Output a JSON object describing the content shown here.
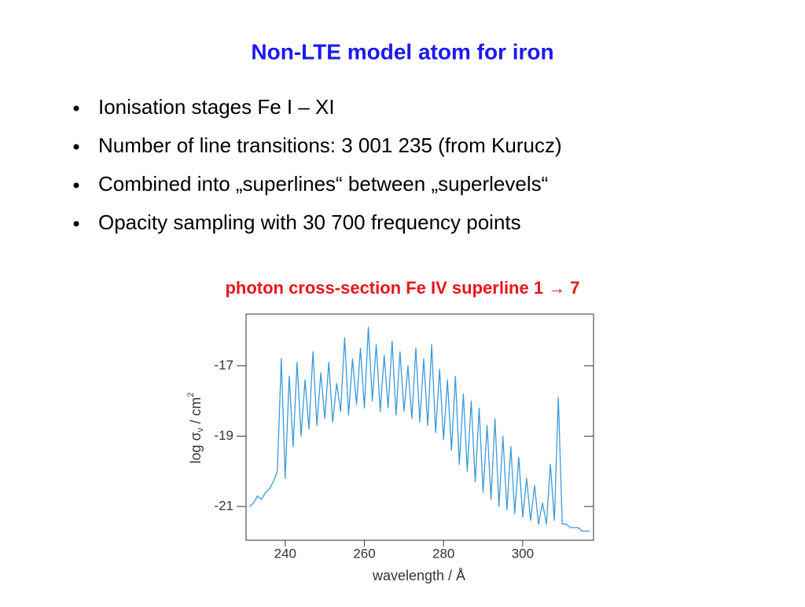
{
  "title": "Non-LTE model atom for iron",
  "bullets": [
    "Ionisation stages Fe I – XI",
    "Number of line transitions: 3 001 235 (from Kurucz)",
    "Combined into „superlines“ between „superlevels“",
    "Opacity sampling with 30 700 frequency points"
  ],
  "chart_data": {
    "type": "line",
    "title": "photon cross-section Fe IV superline 1 → 7",
    "x_label": "wavelength / Å",
    "y_label_parts": [
      "log σ",
      "ν",
      " / cm",
      "2"
    ],
    "x": [
      231,
      232,
      233,
      234,
      235,
      236,
      237,
      238,
      239,
      240,
      241,
      242,
      243,
      244,
      245,
      246,
      247,
      248,
      249,
      250,
      251,
      252,
      253,
      254,
      255,
      256,
      257,
      258,
      259,
      260,
      261,
      262,
      263,
      264,
      265,
      266,
      267,
      268,
      269,
      270,
      271,
      272,
      273,
      274,
      275,
      276,
      277,
      278,
      279,
      280,
      281,
      282,
      283,
      284,
      285,
      286,
      287,
      288,
      289,
      290,
      291,
      292,
      293,
      294,
      295,
      296,
      297,
      298,
      299,
      300,
      301,
      302,
      303,
      304,
      305,
      306,
      307,
      308,
      309,
      310,
      311,
      312,
      313,
      314,
      315,
      316,
      317
    ],
    "series": [
      {
        "color": "#3a9ad9",
        "values": [
          -21.0,
          -20.9,
          -20.7,
          -20.8,
          -20.6,
          -20.5,
          -20.3,
          -20.0,
          -16.8,
          -20.2,
          -17.3,
          -19.3,
          -16.9,
          -19.0,
          -17.4,
          -18.8,
          -16.6,
          -18.7,
          -17.2,
          -18.5,
          -16.9,
          -18.6,
          -17.5,
          -18.3,
          -16.2,
          -18.4,
          -16.8,
          -18.1,
          -16.5,
          -18.2,
          -15.9,
          -18.0,
          -16.4,
          -18.3,
          -16.7,
          -18.2,
          -16.3,
          -18.4,
          -16.6,
          -18.3,
          -17.0,
          -18.5,
          -16.5,
          -18.6,
          -16.8,
          -18.7,
          -16.4,
          -18.9,
          -17.1,
          -19.1,
          -17.4,
          -19.4,
          -17.3,
          -19.8,
          -17.8,
          -20.0,
          -18.0,
          -20.3,
          -18.2,
          -20.6,
          -18.7,
          -20.8,
          -18.5,
          -21.0,
          -19.0,
          -21.1,
          -19.3,
          -21.2,
          -19.6,
          -21.3,
          -20.2,
          -21.4,
          -20.4,
          -21.5,
          -20.9,
          -21.5,
          -19.8,
          -21.4,
          -17.9,
          -21.5,
          -21.5,
          -21.6,
          -21.6,
          -21.6,
          -21.7,
          -21.7,
          -21.7
        ]
      }
    ],
    "xlim": [
      230.1,
      317.9
    ],
    "ylim": [
      -21.96,
      -15.53
    ],
    "xticks": [
      240,
      260,
      280,
      300
    ],
    "yticks": [
      -21,
      -19,
      -17
    ]
  }
}
